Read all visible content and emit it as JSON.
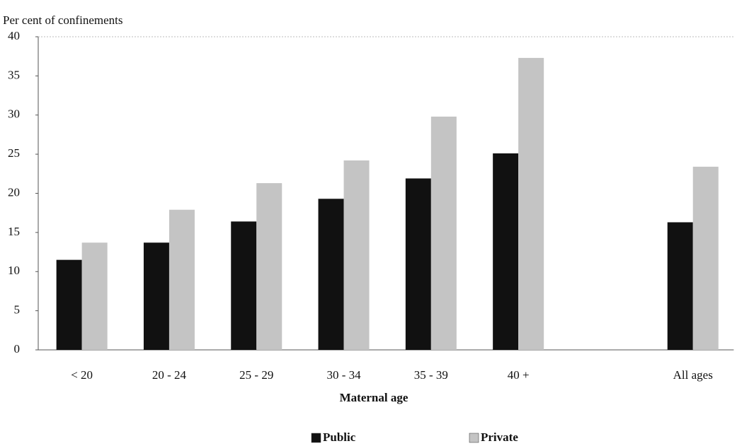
{
  "chart_data": {
    "type": "bar",
    "title": "Per cent of confinements",
    "x_label": "Maternal age",
    "categories": [
      "< 20",
      "20 - 24",
      "25 - 29",
      "30 - 34",
      "35 - 39",
      "40 +",
      null,
      "All ages"
    ],
    "series": [
      {
        "name": "Public",
        "color": "#111111",
        "values": [
          11.5,
          13.7,
          16.4,
          19.3,
          21.9,
          25.1,
          null,
          16.3
        ]
      },
      {
        "name": "Private",
        "color": "#c4c4c4",
        "values": [
          13.7,
          17.9,
          21.3,
          24.2,
          29.8,
          37.3,
          null,
          23.4
        ]
      }
    ],
    "ylim": [
      0,
      40
    ],
    "yticks": [
      0,
      5,
      10,
      15,
      20,
      25,
      30,
      35,
      40
    ],
    "grid": false,
    "legend": "bottom"
  }
}
